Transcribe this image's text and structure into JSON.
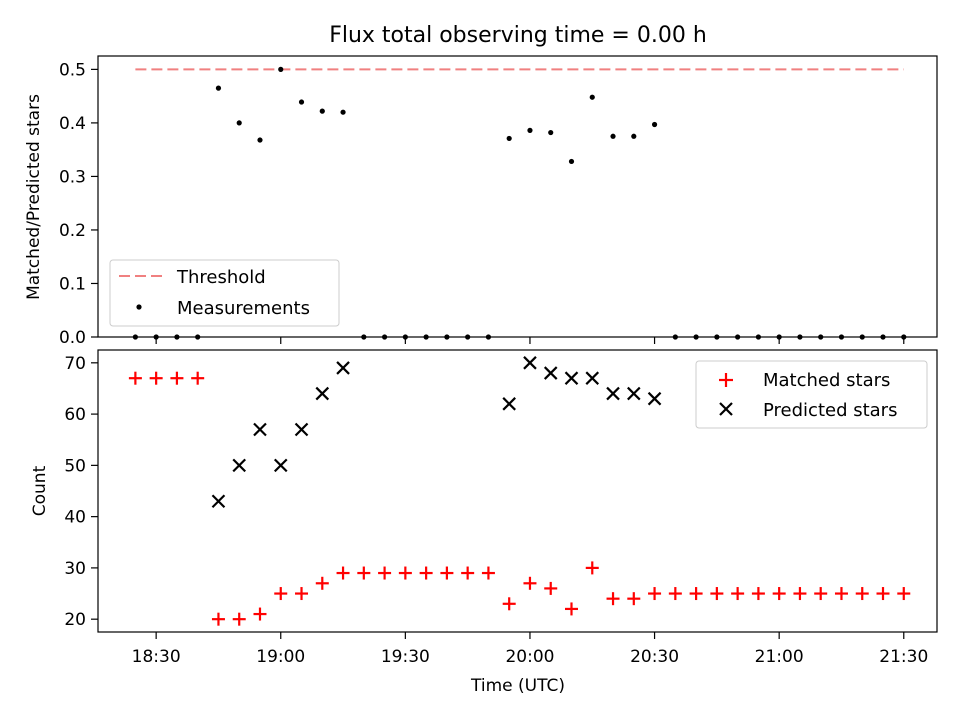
{
  "title": "Flux total observing time = 0.00 h",
  "colors": {
    "threshold": "#f08080",
    "measurement": "#000000",
    "matched": "#ff0000",
    "predicted": "#000000"
  },
  "chart_data": [
    {
      "type": "scatter",
      "panel": "top",
      "title": "Flux total observing time = 0.00 h",
      "xlabel": "",
      "ylabel": "Matched/Predicted stars",
      "xlim": [
        "18:16",
        "21:38"
      ],
      "ylim": [
        0,
        0.525
      ],
      "yticks": [
        0.0,
        0.1,
        0.2,
        0.3,
        0.4,
        0.5
      ],
      "ytick_labels": [
        "0.0",
        "0.1",
        "0.2",
        "0.3",
        "0.4",
        "0.5"
      ],
      "xticks": [
        "18:30",
        "19:00",
        "19:30",
        "20:00",
        "20:30",
        "21:00",
        "21:30"
      ],
      "legend": {
        "placement": "lower-left",
        "entries": [
          "Threshold",
          "Measurements"
        ]
      },
      "threshold": {
        "name": "Threshold",
        "value": 0.5,
        "x_range": [
          "18:25",
          "21:30"
        ],
        "style": "dashed"
      },
      "series": [
        {
          "name": "Measurements",
          "points": [
            {
              "x": "18:25",
              "y": 0.0
            },
            {
              "x": "18:30",
              "y": 0.0
            },
            {
              "x": "18:35",
              "y": 0.0
            },
            {
              "x": "18:40",
              "y": 0.0
            },
            {
              "x": "18:45",
              "y": 0.465
            },
            {
              "x": "18:50",
              "y": 0.4
            },
            {
              "x": "18:55",
              "y": 0.368
            },
            {
              "x": "19:00",
              "y": 0.5
            },
            {
              "x": "19:05",
              "y": 0.439
            },
            {
              "x": "19:10",
              "y": 0.422
            },
            {
              "x": "19:15",
              "y": 0.42
            },
            {
              "x": "19:20",
              "y": 0.0
            },
            {
              "x": "19:25",
              "y": 0.0
            },
            {
              "x": "19:30",
              "y": 0.0
            },
            {
              "x": "19:35",
              "y": 0.0
            },
            {
              "x": "19:40",
              "y": 0.0
            },
            {
              "x": "19:45",
              "y": 0.0
            },
            {
              "x": "19:50",
              "y": 0.0
            },
            {
              "x": "19:55",
              "y": 0.371
            },
            {
              "x": "20:00",
              "y": 0.386
            },
            {
              "x": "20:05",
              "y": 0.382
            },
            {
              "x": "20:10",
              "y": 0.328
            },
            {
              "x": "20:15",
              "y": 0.448
            },
            {
              "x": "20:20",
              "y": 0.375
            },
            {
              "x": "20:25",
              "y": 0.375
            },
            {
              "x": "20:30",
              "y": 0.397
            },
            {
              "x": "20:35",
              "y": 0.0
            },
            {
              "x": "20:40",
              "y": 0.0
            },
            {
              "x": "20:45",
              "y": 0.0
            },
            {
              "x": "20:50",
              "y": 0.0
            },
            {
              "x": "20:55",
              "y": 0.0
            },
            {
              "x": "21:00",
              "y": 0.0
            },
            {
              "x": "21:05",
              "y": 0.0
            },
            {
              "x": "21:10",
              "y": 0.0
            },
            {
              "x": "21:15",
              "y": 0.0
            },
            {
              "x": "21:20",
              "y": 0.0
            },
            {
              "x": "21:25",
              "y": 0.0
            },
            {
              "x": "21:30",
              "y": 0.0
            }
          ]
        }
      ]
    },
    {
      "type": "scatter",
      "panel": "bottom",
      "title": "",
      "xlabel": "Time (UTC)",
      "ylabel": "Count",
      "xlim": [
        "18:16",
        "21:38"
      ],
      "ylim": [
        17.5,
        72.5
      ],
      "yticks": [
        20,
        30,
        40,
        50,
        60,
        70
      ],
      "ytick_labels": [
        "20",
        "30",
        "40",
        "50",
        "60",
        "70"
      ],
      "xticks": [
        "18:30",
        "19:00",
        "19:30",
        "20:00",
        "20:30",
        "21:00",
        "21:30"
      ],
      "xtick_labels": [
        "18:30",
        "19:00",
        "19:30",
        "20:00",
        "20:30",
        "21:00",
        "21:30"
      ],
      "legend": {
        "placement": "upper-right",
        "entries": [
          "Matched stars",
          "Predicted stars"
        ]
      },
      "series": [
        {
          "name": "Matched stars",
          "marker": "plus",
          "points": [
            {
              "x": "18:25",
              "y": 67
            },
            {
              "x": "18:30",
              "y": 67
            },
            {
              "x": "18:35",
              "y": 67
            },
            {
              "x": "18:40",
              "y": 67
            },
            {
              "x": "18:45",
              "y": 20
            },
            {
              "x": "18:50",
              "y": 20
            },
            {
              "x": "18:55",
              "y": 21
            },
            {
              "x": "19:00",
              "y": 25
            },
            {
              "x": "19:05",
              "y": 25
            },
            {
              "x": "19:10",
              "y": 27
            },
            {
              "x": "19:15",
              "y": 29
            },
            {
              "x": "19:20",
              "y": 29
            },
            {
              "x": "19:25",
              "y": 29
            },
            {
              "x": "19:30",
              "y": 29
            },
            {
              "x": "19:35",
              "y": 29
            },
            {
              "x": "19:40",
              "y": 29
            },
            {
              "x": "19:45",
              "y": 29
            },
            {
              "x": "19:50",
              "y": 29
            },
            {
              "x": "19:55",
              "y": 23
            },
            {
              "x": "20:00",
              "y": 27
            },
            {
              "x": "20:05",
              "y": 26
            },
            {
              "x": "20:10",
              "y": 22
            },
            {
              "x": "20:15",
              "y": 30
            },
            {
              "x": "20:20",
              "y": 24
            },
            {
              "x": "20:25",
              "y": 24
            },
            {
              "x": "20:30",
              "y": 25
            },
            {
              "x": "20:35",
              "y": 25
            },
            {
              "x": "20:40",
              "y": 25
            },
            {
              "x": "20:45",
              "y": 25
            },
            {
              "x": "20:50",
              "y": 25
            },
            {
              "x": "20:55",
              "y": 25
            },
            {
              "x": "21:00",
              "y": 25
            },
            {
              "x": "21:05",
              "y": 25
            },
            {
              "x": "21:10",
              "y": 25
            },
            {
              "x": "21:15",
              "y": 25
            },
            {
              "x": "21:20",
              "y": 25
            },
            {
              "x": "21:25",
              "y": 25
            },
            {
              "x": "21:30",
              "y": 25
            }
          ]
        },
        {
          "name": "Predicted stars",
          "marker": "x",
          "points": [
            {
              "x": "18:45",
              "y": 43
            },
            {
              "x": "18:50",
              "y": 50
            },
            {
              "x": "18:55",
              "y": 57
            },
            {
              "x": "19:00",
              "y": 50
            },
            {
              "x": "19:05",
              "y": 57
            },
            {
              "x": "19:10",
              "y": 64
            },
            {
              "x": "19:15",
              "y": 69
            },
            {
              "x": "19:55",
              "y": 62
            },
            {
              "x": "20:00",
              "y": 70
            },
            {
              "x": "20:05",
              "y": 68
            },
            {
              "x": "20:10",
              "y": 67
            },
            {
              "x": "20:15",
              "y": 67
            },
            {
              "x": "20:20",
              "y": 64
            },
            {
              "x": "20:25",
              "y": 64
            },
            {
              "x": "20:30",
              "y": 63
            }
          ]
        }
      ]
    }
  ]
}
